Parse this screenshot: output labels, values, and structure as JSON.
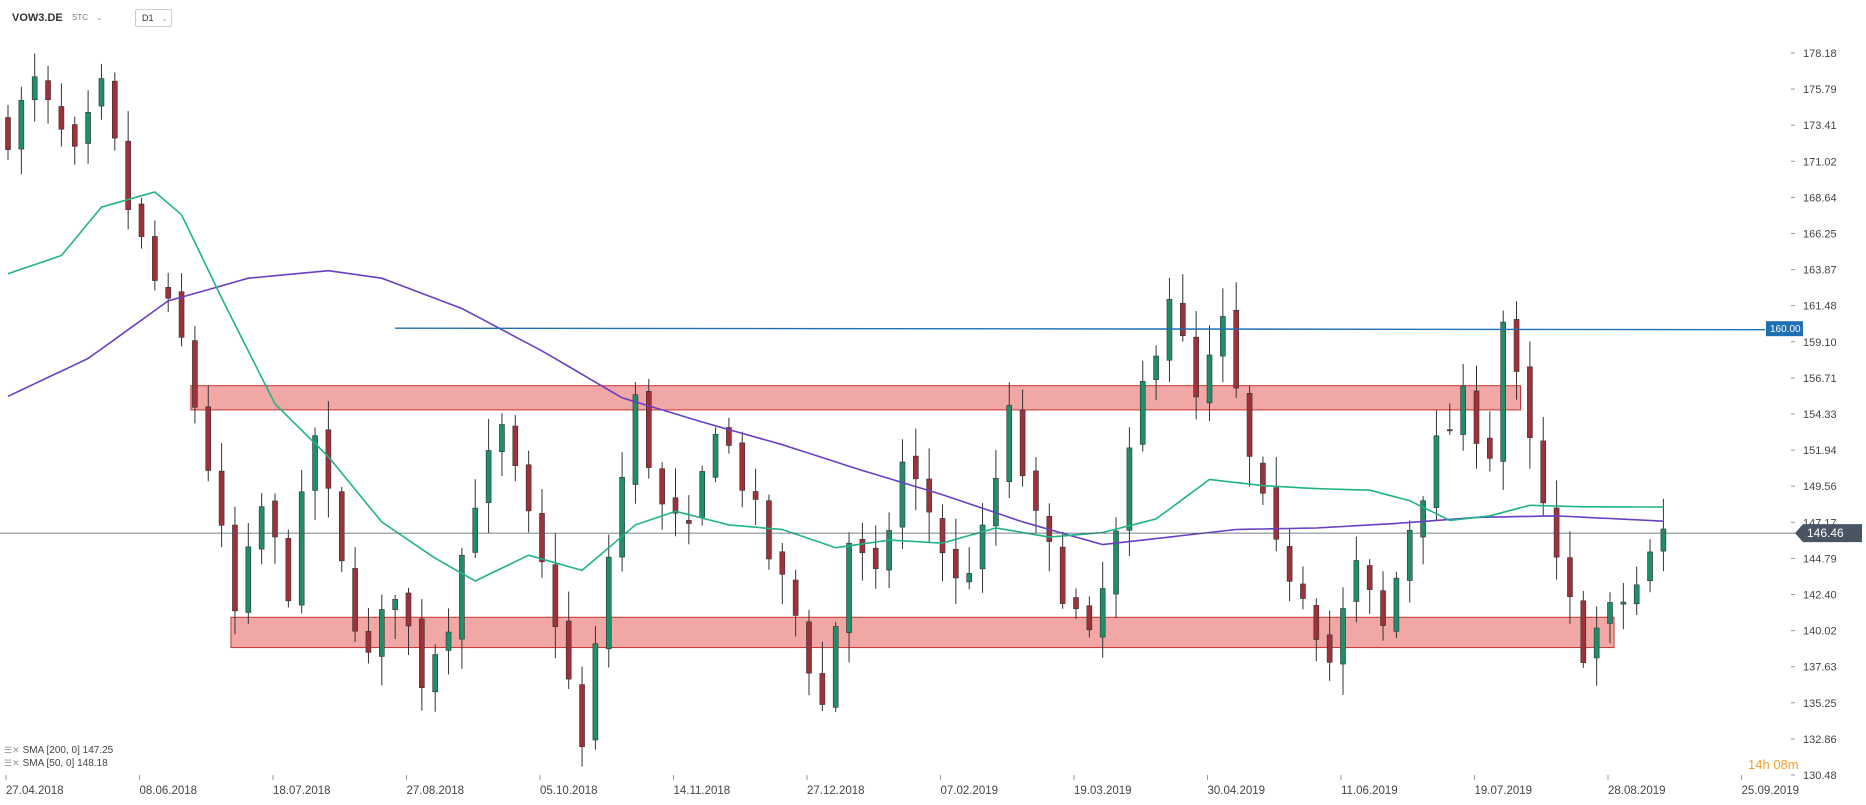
{
  "toolbar": {
    "symbol": "VOW3.DE",
    "chart_type": "STC",
    "timeframe": "D1"
  },
  "legend": {
    "sma200": "SMA [200, 0] 147.25",
    "sma50": "SMA [50, 0] 148.18"
  },
  "timer": {
    "hours": "14",
    "h_unit": "h",
    "minutes": "08",
    "m_unit": "m"
  },
  "colors": {
    "bull": "#1f8f6a",
    "bear": "#a0303a",
    "wick": "#333333",
    "sma50": "#1fb386",
    "sma200": "#6a3fc4",
    "zone_fill": "#ee8a8a",
    "zone_stroke": "#cc3333",
    "resistance_line": "#1f6fb3",
    "price_line": "#4a5a66"
  },
  "chart_data": {
    "type": "candlestick",
    "y_ticks": [
      "178.18",
      "175.79",
      "173.41",
      "171.02",
      "168.64",
      "166.25",
      "163.87",
      "161.48",
      "159.10",
      "156.71",
      "154.33",
      "151.94",
      "149.56",
      "147.17",
      "144.79",
      "142.40",
      "140.02",
      "137.63",
      "135.25",
      "132.86",
      "130.48"
    ],
    "ylim": [
      130.48,
      178.18
    ],
    "x_ticks": [
      "27.04.2018",
      "08.06.2018",
      "18.07.2018",
      "27.08.2018",
      "05.10.2018",
      "14.11.2018",
      "27.12.2018",
      "07.02.2019",
      "19.03.2019",
      "30.04.2019",
      "11.06.2019",
      "19.07.2019",
      "28.08.2019",
      "25.09.2019"
    ],
    "last_price": "146.46",
    "last_price_value": 146.46,
    "horizontal_level": {
      "label": "160.00",
      "value": 160.0,
      "start_date_index": 29
    },
    "zones": [
      {
        "from": 154.6,
        "to": 156.2,
        "start_index": 14,
        "end_index": 113
      },
      {
        "from": 138.9,
        "to": 140.9,
        "start_index": 17,
        "end_index": 120
      }
    ],
    "anchors": [
      {
        "i": 0,
        "c": 173.0
      },
      {
        "i": 2,
        "c": 176.0
      },
      {
        "i": 5,
        "c": 171.0
      },
      {
        "i": 7,
        "c": 175.5
      },
      {
        "i": 9,
        "c": 168.0
      },
      {
        "i": 11,
        "c": 163.0
      },
      {
        "i": 13,
        "c": 159.0
      },
      {
        "i": 15,
        "c": 151.0
      },
      {
        "i": 17,
        "c": 141.0
      },
      {
        "i": 19,
        "c": 148.0
      },
      {
        "i": 21,
        "c": 143.0
      },
      {
        "i": 23,
        "c": 153.0
      },
      {
        "i": 25,
        "c": 144.0
      },
      {
        "i": 27,
        "c": 138.0
      },
      {
        "i": 29,
        "c": 143.0
      },
      {
        "i": 31,
        "c": 137.0
      },
      {
        "i": 33,
        "c": 141.0
      },
      {
        "i": 35,
        "c": 149.0
      },
      {
        "i": 37,
        "c": 153.0
      },
      {
        "i": 39,
        "c": 147.0
      },
      {
        "i": 41,
        "c": 141.0
      },
      {
        "i": 43,
        "c": 132.0
      },
      {
        "i": 45,
        "c": 145.0
      },
      {
        "i": 47,
        "c": 155.0
      },
      {
        "i": 49,
        "c": 148.0
      },
      {
        "i": 51,
        "c": 146.0
      },
      {
        "i": 53,
        "c": 154.0
      },
      {
        "i": 55,
        "c": 150.0
      },
      {
        "i": 57,
        "c": 145.0
      },
      {
        "i": 59,
        "c": 141.0
      },
      {
        "i": 61,
        "c": 135.0
      },
      {
        "i": 63,
        "c": 146.0
      },
      {
        "i": 65,
        "c": 143.0
      },
      {
        "i": 67,
        "c": 151.0
      },
      {
        "i": 69,
        "c": 148.0
      },
      {
        "i": 71,
        "c": 143.0
      },
      {
        "i": 73,
        "c": 146.0
      },
      {
        "i": 75,
        "c": 154.0
      },
      {
        "i": 77,
        "c": 147.0
      },
      {
        "i": 79,
        "c": 143.0
      },
      {
        "i": 81,
        "c": 139.0
      },
      {
        "i": 83,
        "c": 146.0
      },
      {
        "i": 85,
        "c": 156.0
      },
      {
        "i": 87,
        "c": 162.5
      },
      {
        "i": 89,
        "c": 155.0
      },
      {
        "i": 91,
        "c": 160.0
      },
      {
        "i": 93,
        "c": 151.0
      },
      {
        "i": 95,
        "c": 145.0
      },
      {
        "i": 97,
        "c": 143.0
      },
      {
        "i": 99,
        "c": 138.0
      },
      {
        "i": 101,
        "c": 144.0
      },
      {
        "i": 103,
        "c": 140.0
      },
      {
        "i": 105,
        "c": 147.0
      },
      {
        "i": 107,
        "c": 152.0
      },
      {
        "i": 109,
        "c": 155.0
      },
      {
        "i": 111,
        "c": 152.0
      },
      {
        "i": 112,
        "c": 160.5
      },
      {
        "i": 114,
        "c": 152.0
      },
      {
        "i": 116,
        "c": 144.0
      },
      {
        "i": 118,
        "c": 139.0
      },
      {
        "i": 120,
        "c": 141.0
      },
      {
        "i": 122,
        "c": 143.0
      },
      {
        "i": 124,
        "c": 146.46
      }
    ],
    "sma50": [
      {
        "i": 0,
        "v": 163.6
      },
      {
        "i": 4,
        "v": 164.8
      },
      {
        "i": 7,
        "v": 168.0
      },
      {
        "i": 11,
        "v": 169.0
      },
      {
        "i": 13,
        "v": 167.5
      },
      {
        "i": 16,
        "v": 162.0
      },
      {
        "i": 20,
        "v": 155.0
      },
      {
        "i": 24,
        "v": 151.5
      },
      {
        "i": 28,
        "v": 147.2
      },
      {
        "i": 32,
        "v": 144.8
      },
      {
        "i": 35,
        "v": 143.3
      },
      {
        "i": 39,
        "v": 145.0
      },
      {
        "i": 43,
        "v": 144.0
      },
      {
        "i": 47,
        "v": 147.0
      },
      {
        "i": 50,
        "v": 147.9
      },
      {
        "i": 54,
        "v": 147.0
      },
      {
        "i": 58,
        "v": 146.7
      },
      {
        "i": 62,
        "v": 145.5
      },
      {
        "i": 66,
        "v": 146.0
      },
      {
        "i": 70,
        "v": 145.8
      },
      {
        "i": 74,
        "v": 146.8
      },
      {
        "i": 78,
        "v": 146.2
      },
      {
        "i": 82,
        "v": 146.5
      },
      {
        "i": 86,
        "v": 147.4
      },
      {
        "i": 90,
        "v": 150.0
      },
      {
        "i": 94,
        "v": 149.6
      },
      {
        "i": 98,
        "v": 149.4
      },
      {
        "i": 102,
        "v": 149.3
      },
      {
        "i": 105,
        "v": 148.6
      },
      {
        "i": 108,
        "v": 147.3
      },
      {
        "i": 111,
        "v": 147.6
      },
      {
        "i": 114,
        "v": 148.3
      },
      {
        "i": 118,
        "v": 148.2
      },
      {
        "i": 124,
        "v": 148.18
      }
    ],
    "sma200": [
      {
        "i": 0,
        "v": 155.5
      },
      {
        "i": 6,
        "v": 158.0
      },
      {
        "i": 12,
        "v": 161.8
      },
      {
        "i": 18,
        "v": 163.3
      },
      {
        "i": 24,
        "v": 163.8
      },
      {
        "i": 28,
        "v": 163.3
      },
      {
        "i": 34,
        "v": 161.3
      },
      {
        "i": 40,
        "v": 158.5
      },
      {
        "i": 46,
        "v": 155.4
      },
      {
        "i": 52,
        "v": 153.8
      },
      {
        "i": 58,
        "v": 152.3
      },
      {
        "i": 64,
        "v": 150.6
      },
      {
        "i": 70,
        "v": 149.0
      },
      {
        "i": 76,
        "v": 147.2
      },
      {
        "i": 82,
        "v": 145.7
      },
      {
        "i": 86,
        "v": 146.1
      },
      {
        "i": 92,
        "v": 146.7
      },
      {
        "i": 98,
        "v": 146.8
      },
      {
        "i": 104,
        "v": 147.1
      },
      {
        "i": 110,
        "v": 147.5
      },
      {
        "i": 116,
        "v": 147.6
      },
      {
        "i": 124,
        "v": 147.25
      }
    ]
  }
}
